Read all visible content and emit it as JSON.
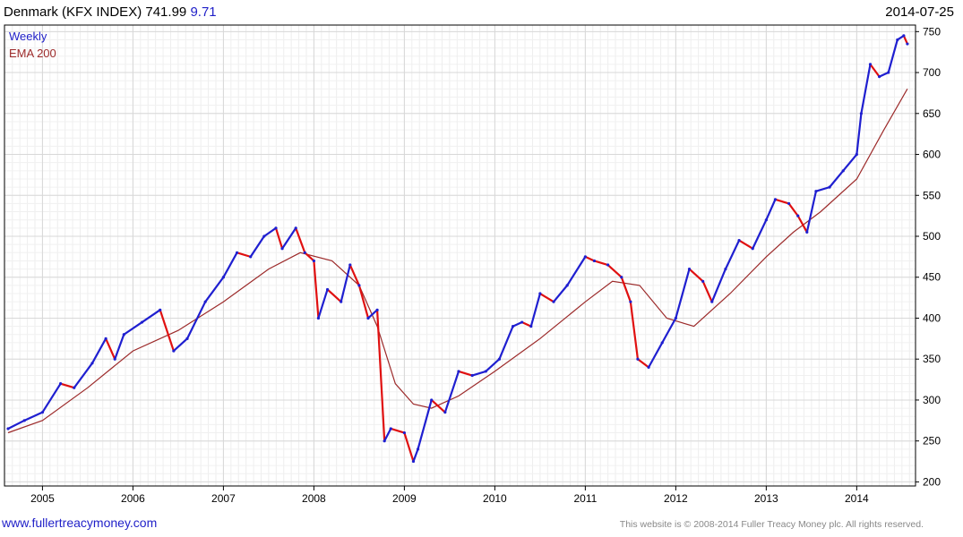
{
  "header": {
    "name": "Denmark (KFX INDEX)",
    "last": "741.99",
    "change": "9.71",
    "date": "2014-07-25"
  },
  "footer": {
    "site": "www.fullertreacymoney.com",
    "copyright": "This website is © 2008-2014 Fuller Treacy Money plc. All rights reserved."
  },
  "colors": {
    "up": "#1f1fd0",
    "down": "#e01010",
    "ema": "#9c2a2a",
    "grid": "#d8d8d8"
  },
  "chart_data": {
    "type": "line",
    "legend": [
      "Weekly",
      "EMA 200"
    ],
    "legend_position": "top-left",
    "y_axis_side": "right",
    "grid": true,
    "xlim": [
      2004.58,
      2014.65
    ],
    "ylim": [
      195,
      758
    ],
    "x_ticks": [
      2005,
      2006,
      2007,
      2008,
      2009,
      2010,
      2011,
      2012,
      2013,
      2014
    ],
    "x_tick_labels": [
      "2005",
      "2006",
      "2007",
      "2008",
      "2009",
      "2010",
      "2011",
      "2012",
      "2013",
      "2014"
    ],
    "y_ticks": [
      200,
      250,
      300,
      350,
      400,
      450,
      500,
      550,
      600,
      650,
      700,
      750
    ],
    "y_tick_labels": [
      "200",
      "250",
      "300",
      "350",
      "400",
      "450",
      "500",
      "550",
      "600",
      "650",
      "700",
      "750"
    ],
    "series": [
      {
        "name": "Weekly",
        "x": [
          2004.62,
          2004.8,
          2005.0,
          2005.2,
          2005.35,
          2005.55,
          2005.7,
          2005.8,
          2005.9,
          2006.1,
          2006.3,
          2006.45,
          2006.6,
          2006.8,
          2007.0,
          2007.15,
          2007.3,
          2007.45,
          2007.58,
          2007.65,
          2007.8,
          2007.9,
          2008.0,
          2008.05,
          2008.15,
          2008.3,
          2008.4,
          2008.5,
          2008.6,
          2008.7,
          2008.78,
          2008.85,
          2009.0,
          2009.1,
          2009.15,
          2009.3,
          2009.45,
          2009.6,
          2009.75,
          2009.9,
          2010.05,
          2010.2,
          2010.3,
          2010.4,
          2010.5,
          2010.65,
          2010.8,
          2011.0,
          2011.1,
          2011.25,
          2011.4,
          2011.5,
          2011.58,
          2011.7,
          2011.85,
          2012.0,
          2012.15,
          2012.3,
          2012.4,
          2012.55,
          2012.7,
          2012.85,
          2013.0,
          2013.1,
          2013.25,
          2013.35,
          2013.45,
          2013.55,
          2013.7,
          2013.85,
          2014.0,
          2014.05,
          2014.15,
          2014.25,
          2014.35,
          2014.45,
          2014.52,
          2014.56
        ],
        "values": [
          265,
          275,
          285,
          320,
          315,
          345,
          375,
          350,
          380,
          395,
          410,
          360,
          375,
          420,
          450,
          480,
          475,
          500,
          510,
          485,
          510,
          480,
          470,
          400,
          435,
          420,
          465,
          440,
          400,
          410,
          250,
          265,
          260,
          225,
          240,
          300,
          285,
          335,
          330,
          335,
          350,
          390,
          395,
          390,
          430,
          420,
          440,
          475,
          470,
          465,
          450,
          420,
          350,
          340,
          370,
          400,
          460,
          445,
          420,
          460,
          495,
          485,
          520,
          545,
          540,
          525,
          505,
          555,
          560,
          580,
          600,
          650,
          710,
          695,
          700,
          740,
          745,
          735
        ]
      },
      {
        "name": "EMA 200",
        "x": [
          2004.62,
          2005.0,
          2005.5,
          2006.0,
          2006.5,
          2007.0,
          2007.5,
          2007.85,
          2008.2,
          2008.5,
          2008.7,
          2008.9,
          2009.1,
          2009.3,
          2009.6,
          2010.0,
          2010.5,
          2011.0,
          2011.3,
          2011.6,
          2011.9,
          2012.2,
          2012.6,
          2013.0,
          2013.3,
          2013.6,
          2014.0,
          2014.3,
          2014.56
        ],
        "values": [
          260,
          275,
          315,
          360,
          385,
          420,
          460,
          480,
          470,
          440,
          390,
          320,
          295,
          290,
          305,
          335,
          375,
          420,
          445,
          440,
          400,
          390,
          430,
          475,
          505,
          530,
          570,
          630,
          680
        ]
      }
    ]
  }
}
